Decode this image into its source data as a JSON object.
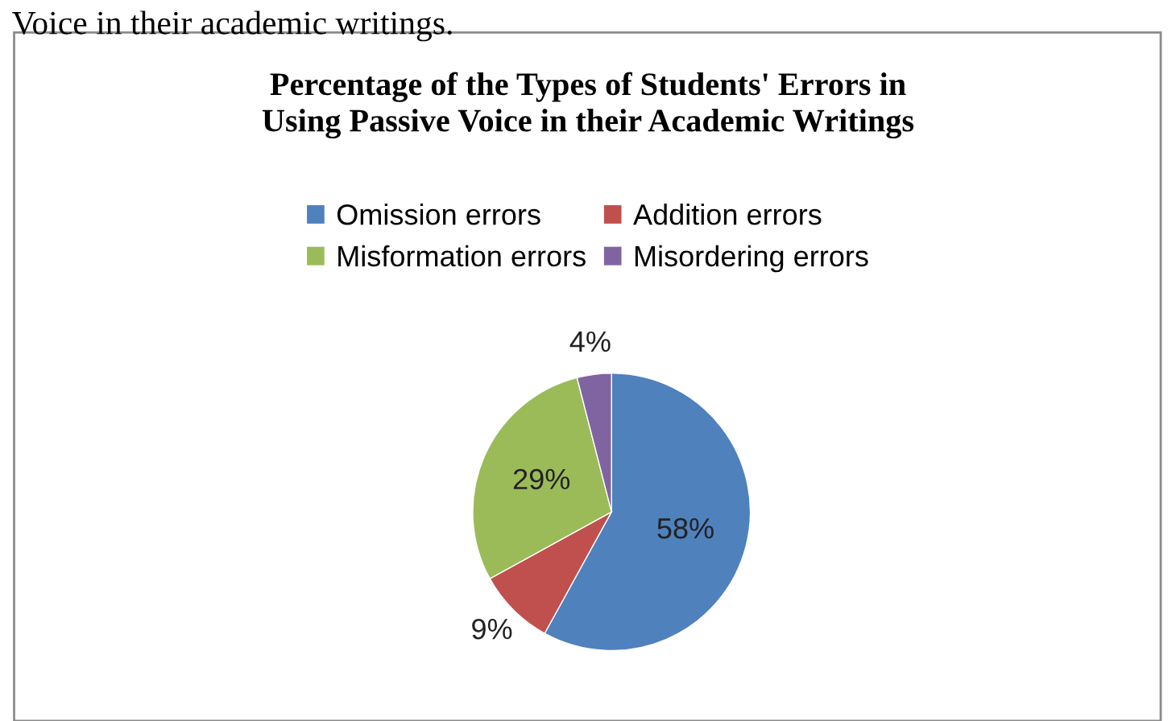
{
  "chart_data": {
    "type": "pie",
    "title": "Percentage of the Types of Students' Errors in\nUsing Passive Voice in their Academic Writings",
    "categories": [
      "Omission errors",
      "Addition errors",
      "Misformation errors",
      "Misordering errors"
    ],
    "values": [
      58,
      9,
      29,
      4
    ],
    "colors": [
      "#4f81bd",
      "#c0504d",
      "#9bbb59",
      "#8064a2"
    ],
    "value_labels": [
      "58%",
      "9%",
      "29%",
      "4%"
    ],
    "legend": "top",
    "annotations": [
      "Voice in their academic writings."
    ]
  }
}
